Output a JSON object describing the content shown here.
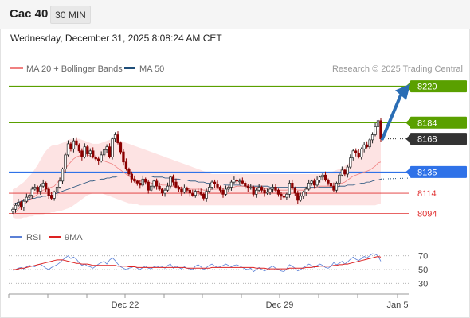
{
  "header": {
    "symbol": "Cac 40",
    "timeframe": "30 MIN",
    "datetime": "Wednesday, December 31, 2025 8:08:24 AM CET"
  },
  "legend": {
    "ma20_label": "MA 20 + Bollinger Bands",
    "ma50_label": "MA 50",
    "credit": "Research © 2025 Trading Central"
  },
  "rsi_legend": {
    "rsi_label": "RSI",
    "ma_label": "9MA"
  },
  "colors": {
    "ma20": "#f08080",
    "bollinger_fill": "#fde3e3",
    "ma50": "#1f4e79",
    "green_level": "#5aa000",
    "blue_level": "#2f72e8",
    "red_level": "#e03030",
    "current_price": "#333333",
    "arrow": "#2a6db5",
    "rsi": "#5b80d6",
    "rsi_ma": "#dd2222",
    "candle_up": "#222222",
    "candle_down": "#8b0000"
  },
  "chart_data": [
    {
      "type": "candlestick",
      "x_ticks": [
        "Dec 22",
        "Dec 29",
        "Jan 5"
      ],
      "y_range": [
        8088,
        8230
      ],
      "levels": [
        {
          "value": 8220,
          "label": "8220",
          "kind": "resistance-2",
          "style": "green"
        },
        {
          "value": 8184,
          "label": "8184",
          "kind": "resistance-1",
          "style": "green"
        },
        {
          "value": 8168,
          "label": "8168",
          "kind": "last-price",
          "style": "dark"
        },
        {
          "value": 8135,
          "label": "8135",
          "kind": "pivot",
          "style": "blue"
        },
        {
          "value": 8114,
          "label": "8114",
          "kind": "support-1",
          "style": "red"
        },
        {
          "value": 8094,
          "label": "8094",
          "kind": "support-2",
          "style": "red"
        }
      ],
      "arrow": {
        "from": 8168,
        "to": 8220,
        "direction": "up"
      },
      "close": [
        8098,
        8102,
        8105,
        8100,
        8106,
        8110,
        8112,
        8118,
        8120,
        8116,
        8121,
        8124,
        8118,
        8112,
        8109,
        8115,
        8120,
        8126,
        8138,
        8152,
        8163,
        8158,
        8166,
        8162,
        8156,
        8150,
        8160,
        8153,
        8156,
        8150,
        8148,
        8146,
        8152,
        8157,
        8160,
        8150,
        8168,
        8172,
        8164,
        8155,
        8145,
        8138,
        8133,
        8128,
        8126,
        8124,
        8122,
        8128,
        8125,
        8117,
        8121,
        8126,
        8121,
        8118,
        8114,
        8117,
        8121,
        8130,
        8125,
        8120,
        8118,
        8115,
        8119,
        8117,
        8114,
        8112,
        8116,
        8115,
        8113,
        8109,
        8116,
        8120,
        8125,
        8123,
        8120,
        8117,
        8113,
        8118,
        8120,
        8125,
        8127,
        8126,
        8126,
        8124,
        8121,
        8119,
        8120,
        8113,
        8117,
        8120,
        8117,
        8114,
        8115,
        8118,
        8120,
        8117,
        8113,
        8111,
        8110,
        8113,
        8124,
        8119,
        8114,
        8107,
        8111,
        8115,
        8118,
        8124,
        8126,
        8122,
        8127,
        8130,
        8132,
        8127,
        8124,
        8121,
        8117,
        8124,
        8132,
        8137,
        8133,
        8140,
        8149,
        8156,
        8154,
        8150,
        8158,
        8162,
        8160,
        8167,
        8172,
        8180,
        8186,
        8168
      ],
      "ma20": [
        8092,
        8095,
        8098,
        8101,
        8103,
        8105,
        8107,
        8109,
        8111,
        8113,
        8115,
        8117,
        8118,
        8119,
        8120,
        8121,
        8124,
        8128,
        8133,
        8138,
        8142,
        8145,
        8148,
        8150,
        8151,
        8152,
        8152,
        8152,
        8151,
        8150,
        8149,
        8148,
        8147,
        8146,
        8145,
        8144,
        8143,
        8141,
        8139,
        8137,
        8135,
        8133,
        8131,
        8129,
        8128,
        8127,
        8126,
        8126,
        8125,
        8125,
        8124,
        8124,
        8123,
        8123,
        8122,
        8122,
        8122,
        8121,
        8121,
        8121,
        8120,
        8120,
        8119,
        8119,
        8118,
        8118,
        8118,
        8118,
        8118,
        8117,
        8117,
        8117,
        8118,
        8118,
        8118,
        8119,
        8119,
        8119,
        8120,
        8120,
        8120,
        8121,
        8121,
        8121,
        8121,
        8121,
        8121,
        8120,
        8120,
        8120,
        8119,
        8119,
        8118,
        8118,
        8117,
        8117,
        8117,
        8117,
        8117,
        8117,
        8118,
        8118,
        8118,
        8117,
        8117,
        8117,
        8118,
        8118,
        8119,
        8119,
        8120,
        8121,
        8121,
        8121,
        8121,
        8121,
        8121,
        8122,
        8123,
        8124,
        8125,
        8127,
        8129,
        8131,
        8132,
        8133,
        8134,
        8135,
        8136,
        8137,
        8139,
        8141,
        8144,
        8145
      ],
      "ma50": [
        8103,
        8104,
        8105,
        8106,
        8107,
        8108,
        8108,
        8109,
        8109,
        8110,
        8110,
        8111,
        8111,
        8112,
        8112,
        8113,
        8114,
        8115,
        8116,
        8117,
        8118,
        8119,
        8120,
        8121,
        8122,
        8123,
        8124,
        8125,
        8126,
        8126,
        8127,
        8127,
        8128,
        8128,
        8129,
        8129,
        8130,
        8130,
        8131,
        8131,
        8131,
        8131,
        8131,
        8131,
        8131,
        8131,
        8131,
        8131,
        8131,
        8131,
        8131,
        8130,
        8130,
        8130,
        8130,
        8129,
        8129,
        8129,
        8128,
        8128,
        8128,
        8127,
        8127,
        8127,
        8126,
        8126,
        8126,
        8125,
        8125,
        8125,
        8124,
        8124,
        8124,
        8123,
        8123,
        8123,
        8123,
        8122,
        8122,
        8122,
        8122,
        8122,
        8122,
        8121,
        8121,
        8121,
        8121,
        8121,
        8121,
        8121,
        8121,
        8121,
        8121,
        8120,
        8120,
        8120,
        8120,
        8120,
        8120,
        8120,
        8120,
        8120,
        8120,
        8120,
        8120,
        8120,
        8120,
        8120,
        8120,
        8120,
        8120,
        8120,
        8120,
        8120,
        8120,
        8120,
        8120,
        8120,
        8121,
        8121,
        8121,
        8122,
        8122,
        8122,
        8123,
        8123,
        8124,
        8124,
        8125,
        8125,
        8126,
        8127,
        8127,
        8128
      ],
      "bb_upper": [
        8118,
        8119,
        8121,
        8123,
        8125,
        8128,
        8131,
        8134,
        8138,
        8142,
        8147,
        8152,
        8156,
        8159,
        8161,
        8162,
        8162,
        8163,
        8164,
        8165,
        8167,
        8168,
        8168,
        8168,
        8168,
        8167,
        8166,
        8165,
        8164,
        8163,
        8163,
        8163,
        8164,
        8165,
        8166,
        8167,
        8168,
        8168,
        8167,
        8166,
        8165,
        8164,
        8163,
        8162,
        8161,
        8160,
        8159,
        8158,
        8157,
        8156,
        8155,
        8154,
        8153,
        8152,
        8151,
        8150,
        8149,
        8148,
        8147,
        8146,
        8145,
        8144,
        8143,
        8142,
        8141,
        8140,
        8139,
        8138,
        8137,
        8136,
        8135,
        8134,
        8133,
        8133,
        8133,
        8133,
        8133,
        8133,
        8133,
        8133,
        8133,
        8133,
        8133,
        8133,
        8133,
        8133,
        8133,
        8133,
        8133,
        8133,
        8133,
        8133,
        8133,
        8133,
        8133,
        8133,
        8133,
        8133,
        8133,
        8133,
        8133,
        8133,
        8133,
        8133,
        8133,
        8133,
        8133,
        8133,
        8133,
        8133,
        8133,
        8133,
        8134,
        8134,
        8135,
        8135,
        8136,
        8137,
        8138,
        8139,
        8141,
        8143,
        8145,
        8147,
        8150,
        8153,
        8156,
        8159,
        8162,
        8165,
        8169,
        8173,
        8177,
        8180
      ],
      "bb_lower": [
        8090,
        8089,
        8089,
        8089,
        8090,
        8090,
        8091,
        8091,
        8092,
        8092,
        8093,
        8093,
        8094,
        8094,
        8095,
        8095,
        8096,
        8096,
        8097,
        8098,
        8099,
        8100,
        8102,
        8104,
        8106,
        8108,
        8110,
        8112,
        8113,
        8114,
        8114,
        8114,
        8114,
        8113,
        8112,
        8111,
        8110,
        8109,
        8108,
        8107,
        8106,
        8105,
        8104,
        8104,
        8103,
        8103,
        8102,
        8102,
        8102,
        8102,
        8102,
        8102,
        8102,
        8102,
        8102,
        8102,
        8102,
        8102,
        8102,
        8102,
        8102,
        8102,
        8102,
        8102,
        8102,
        8102,
        8102,
        8102,
        8102,
        8102,
        8102,
        8102,
        8102,
        8102,
        8102,
        8102,
        8102,
        8102,
        8102,
        8102,
        8102,
        8102,
        8102,
        8102,
        8102,
        8102,
        8102,
        8102,
        8102,
        8102,
        8102,
        8102,
        8102,
        8102,
        8102,
        8102,
        8102,
        8102,
        8102,
        8102,
        8102,
        8102,
        8102,
        8102,
        8102,
        8102,
        8102,
        8102,
        8102,
        8102,
        8102,
        8102,
        8102,
        8102,
        8102,
        8102,
        8102,
        8102,
        8102,
        8102,
        8102,
        8102,
        8102,
        8102,
        8102,
        8102,
        8102,
        8102,
        8102,
        8102,
        8102,
        8102,
        8103,
        8104
      ]
    },
    {
      "type": "line",
      "y_ticks": [
        70,
        50,
        30
      ],
      "y_range": [
        20,
        80
      ],
      "series": [
        {
          "name": "RSI",
          "values": [
            49,
            50,
            52,
            53,
            51,
            54,
            56,
            55,
            54,
            57,
            58,
            55,
            52,
            50,
            53,
            55,
            57,
            60,
            64,
            67,
            70,
            66,
            68,
            65,
            60,
            56,
            58,
            55,
            54,
            52,
            55,
            58,
            60,
            62,
            58,
            64,
            67,
            63,
            58,
            54,
            52,
            50,
            52,
            53,
            55,
            52,
            50,
            53,
            55,
            52,
            51,
            54,
            55,
            53,
            54,
            52,
            56,
            58,
            52,
            55,
            53,
            51,
            54,
            52,
            51,
            50,
            55,
            57,
            54,
            50,
            53,
            56,
            58,
            55,
            53,
            54,
            56,
            58,
            56,
            54,
            56,
            57,
            55,
            53,
            51,
            50,
            52,
            47,
            50,
            53,
            50,
            48,
            50,
            53,
            55,
            52,
            50,
            48,
            47,
            51,
            57,
            55,
            52,
            48,
            50,
            53,
            55,
            58,
            56,
            53,
            56,
            58,
            56,
            53,
            52,
            55,
            60,
            57,
            59,
            62,
            58,
            61,
            65,
            68,
            65,
            63,
            66,
            69,
            67,
            70,
            73,
            72,
            70,
            62
          ]
        },
        {
          "name": "9MA",
          "values": [
            50,
            50,
            51,
            52,
            52,
            53,
            54,
            55,
            56,
            57,
            58,
            59,
            60,
            61,
            62,
            63,
            64,
            64,
            64,
            63,
            62,
            61,
            60,
            59,
            59,
            58,
            58,
            58,
            57,
            56,
            56,
            56,
            56,
            56,
            56,
            56,
            56,
            56,
            55,
            55,
            55,
            55,
            54,
            54,
            54,
            53,
            53,
            53,
            53,
            53,
            53,
            53,
            53,
            53,
            53,
            53,
            53,
            53,
            53,
            53,
            53,
            53,
            53,
            52,
            52,
            52,
            52,
            52,
            52,
            52,
            52,
            52,
            53,
            53,
            53,
            53,
            53,
            53,
            53,
            53,
            53,
            53,
            53,
            53,
            53,
            53,
            53,
            53,
            52,
            52,
            52,
            52,
            51,
            51,
            51,
            51,
            51,
            51,
            51,
            51,
            52,
            52,
            52,
            52,
            52,
            52,
            53,
            53,
            53,
            54,
            54,
            55,
            55,
            55,
            55,
            55,
            56,
            56,
            57,
            57,
            58,
            58,
            59,
            60,
            61,
            62,
            63,
            64,
            65,
            66,
            67,
            68,
            69,
            68
          ]
        }
      ]
    }
  ]
}
